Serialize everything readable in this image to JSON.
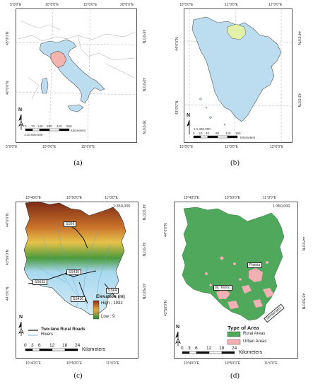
{
  "panel_a": {
    "caption": "(a)",
    "top_ticks": [
      "5°0'0\"E",
      "10°0'0\"E",
      "15°0'0\"E",
      "20°0'0\"E"
    ],
    "bottom_ticks": [
      "5°0'0\"E",
      "10°0'0\"E",
      "15°0'0\"E"
    ],
    "left_ticks": [
      "45°0'0\"N",
      "40°0'0\"N"
    ],
    "right_ticks": [
      "45°0'0\"N",
      "40°0'0\"N",
      "35°0'0\"N"
    ],
    "scale_numbers": [
      "0",
      "70",
      "140",
      "280",
      "420",
      "560"
    ],
    "scale_unit": "Kilometers",
    "scale_ratio": "1:10,000,000",
    "north": "N",
    "colors": {
      "country": "#bcdcf0",
      "region": "#f2b4ad"
    }
  },
  "panel_b": {
    "caption": "(b)",
    "top_ticks": [
      "10°0'0\"E",
      "11°0'0\"E",
      "12°0'0\"E"
    ],
    "bottom_ticks": [
      "10°0'0\"E",
      "11°0'0\"E",
      "12°0'0\"E"
    ],
    "left_ticks": [
      "44°0'0\"N",
      "43°0'0\"N"
    ],
    "right_ticks": [
      "44°0'0\"N",
      "43°0'0\"N"
    ],
    "scale_numbers": [
      "0",
      "20",
      "40",
      "80",
      "120",
      "160"
    ],
    "scale_unit": "Kilometers",
    "scale_ratio": "1:1,300,000",
    "north": "N",
    "colors": {
      "region": "#bcdcf0",
      "province": "#e2f0a8"
    }
  },
  "panel_c": {
    "caption": "(c)",
    "top_ticks": [
      "10°40'0\"E",
      "10°50'0\"E",
      "11°0'0\"E"
    ],
    "bottom_ticks": [
      "10°40'0\"E",
      "10°50'0\"E",
      "11°0'0\"E"
    ],
    "left_ticks": [
      "44°0'0\"N",
      "43°50'0\"N",
      "44°0'0\"N"
    ],
    "right_ticks": [
      "44°10'0\"N",
      "44°0'0\"N",
      "43°50'0\"N"
    ],
    "scale_ratio": "1:350,000",
    "road_labels": [
      "SS66",
      "SS633",
      "SS435",
      "SS436",
      "SS64"
    ],
    "legend": {
      "elevation_title": "Elevation (m)",
      "high_label": "High : 1932",
      "low_label": "Low : 9",
      "roads": "Two-lane Rural Roads",
      "rivers": "Rivers"
    },
    "scale_numbers": [
      "0",
      "3",
      "6",
      "12",
      "18",
      "24"
    ],
    "scale_unit": "Kilometers",
    "north": "N",
    "colors": {
      "high": "#8b2a12",
      "mid": "#e7a93a",
      "low": "#2e8b3a",
      "rivers": "#9bc7e8",
      "lowland": "#a8d8ee"
    }
  },
  "panel_d": {
    "caption": "(d)",
    "top_ticks": [
      "10°40'0\"E",
      "10°50'0\"E",
      "11°0'0\"E"
    ],
    "bottom_ticks": [
      "10°40'0\"E",
      "10°50'0\"E",
      "11°0'0\"E"
    ],
    "left_ticks": [
      "44°0'0\"N",
      "43°50'0\"N"
    ],
    "right_ticks": [
      "44°0'0\"N",
      "43°50'0\"N"
    ],
    "scale_ratio": "1:350,000",
    "place_labels": [
      "Pistoia",
      "M. Termo",
      "Montecatini"
    ],
    "legend": {
      "title": "Type of Area",
      "rural": "Rural Areas",
      "urban": "Urban Areas"
    },
    "scale_numbers": [
      "0",
      "3",
      "6",
      "12",
      "18",
      "24"
    ],
    "scale_unit": "Kilometers",
    "north": "N",
    "colors": {
      "rural": "#4fa85c",
      "urban": "#f2b0b3"
    }
  }
}
